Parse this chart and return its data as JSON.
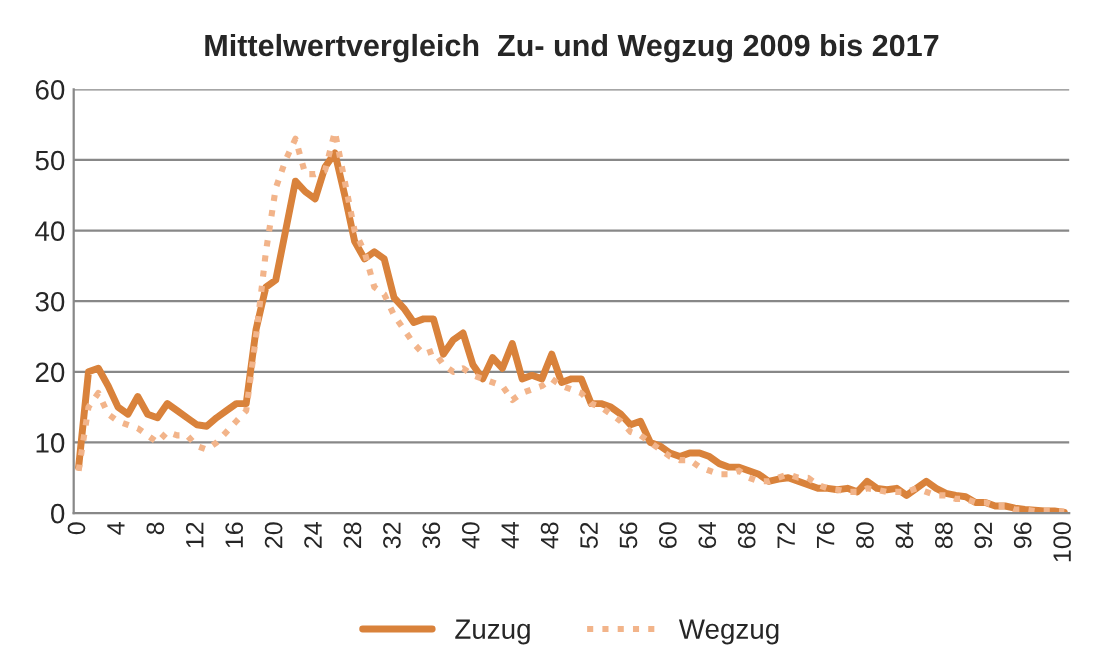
{
  "chart_data": {
    "type": "line",
    "title": "Mittelwertvergleich  Zu- und Wegzug 2009 bis 2017",
    "categories": [
      "0",
      null,
      null,
      null,
      "4",
      null,
      null,
      null,
      "8",
      null,
      null,
      null,
      "12",
      null,
      null,
      null,
      "16",
      null,
      null,
      null,
      "20",
      null,
      null,
      null,
      "24",
      null,
      null,
      null,
      "28",
      null,
      null,
      null,
      "32",
      null,
      null,
      null,
      "36",
      null,
      null,
      null,
      "40",
      null,
      null,
      null,
      "44",
      null,
      null,
      null,
      "48",
      null,
      null,
      null,
      "52",
      null,
      null,
      null,
      "56",
      null,
      null,
      null,
      "60",
      null,
      null,
      null,
      "64",
      null,
      null,
      null,
      "68",
      null,
      null,
      null,
      "72",
      null,
      null,
      null,
      "76",
      null,
      null,
      null,
      "80",
      null,
      null,
      null,
      "84",
      null,
      null,
      null,
      "88",
      null,
      null,
      null,
      "92",
      null,
      null,
      null,
      "96",
      null,
      null,
      null,
      "100"
    ],
    "series": [
      {
        "name": "Zuzug",
        "color": "#d9823b",
        "line_style": "solid",
        "values": [
          6.5,
          20,
          20.5,
          18,
          15,
          14,
          16.5,
          14,
          13.5,
          15.5,
          14.5,
          13.5,
          12.5,
          12.3,
          13.5,
          14.5,
          15.5,
          15.5,
          26,
          32,
          33,
          40,
          47,
          45.5,
          44.5,
          49,
          51,
          45,
          38.5,
          36,
          37,
          36,
          30.5,
          29,
          27,
          27.5,
          27.5,
          22.5,
          24.5,
          25.5,
          21,
          19,
          22,
          20.5,
          24,
          19,
          19.5,
          19,
          22.5,
          18.5,
          19,
          19,
          15.5,
          15.5,
          15,
          14,
          12.5,
          13,
          10,
          9.5,
          8.5,
          8,
          8.5,
          8.5,
          8,
          7,
          6.5,
          6.5,
          6,
          5.5,
          4.5,
          4.8,
          5,
          4.5,
          4,
          3.5,
          3.5,
          3.3,
          3.5,
          3,
          4.5,
          3.5,
          3.3,
          3.5,
          2.5,
          3.5,
          4.5,
          3.5,
          2.8,
          2.5,
          2.3,
          1.5,
          1.5,
          1,
          1,
          0.7,
          0.5,
          0.4,
          0.3,
          0.3,
          0.1
        ]
      },
      {
        "name": "Wegzug",
        "color": "#f2b48a",
        "line_style": "dotted",
        "values": [
          6,
          15,
          17,
          14,
          13,
          12.5,
          12,
          11,
          10,
          11.5,
          11,
          11,
          9.5,
          9,
          10,
          11.5,
          13,
          14.5,
          25,
          37,
          46,
          50,
          53,
          48,
          48,
          48.5,
          54,
          47,
          40,
          37,
          32,
          31,
          28,
          26,
          24,
          22.5,
          23,
          21,
          20,
          20.5,
          19.5,
          19,
          18.5,
          18,
          16,
          17,
          17.5,
          18,
          19,
          18,
          17.5,
          17,
          15.5,
          15,
          14,
          13,
          11.5,
          11,
          10,
          9,
          8,
          7.5,
          7.5,
          6.5,
          6,
          5.5,
          5.5,
          6,
          5,
          4.5,
          4.5,
          5,
          5.5,
          5,
          5,
          4,
          3.5,
          3.3,
          3,
          3,
          3.5,
          3.3,
          3,
          3,
          3,
          3.5,
          3,
          2.5,
          2.5,
          2,
          2,
          1.5,
          1.5,
          1,
          1,
          0.5,
          0.5,
          0.3,
          0.3,
          0.3,
          0.2
        ]
      }
    ],
    "ylim": [
      0,
      60
    ],
    "yticks": [
      0,
      10,
      20,
      30,
      40,
      50,
      60
    ],
    "grid": "y",
    "legend": "bottom",
    "marker": "none"
  }
}
